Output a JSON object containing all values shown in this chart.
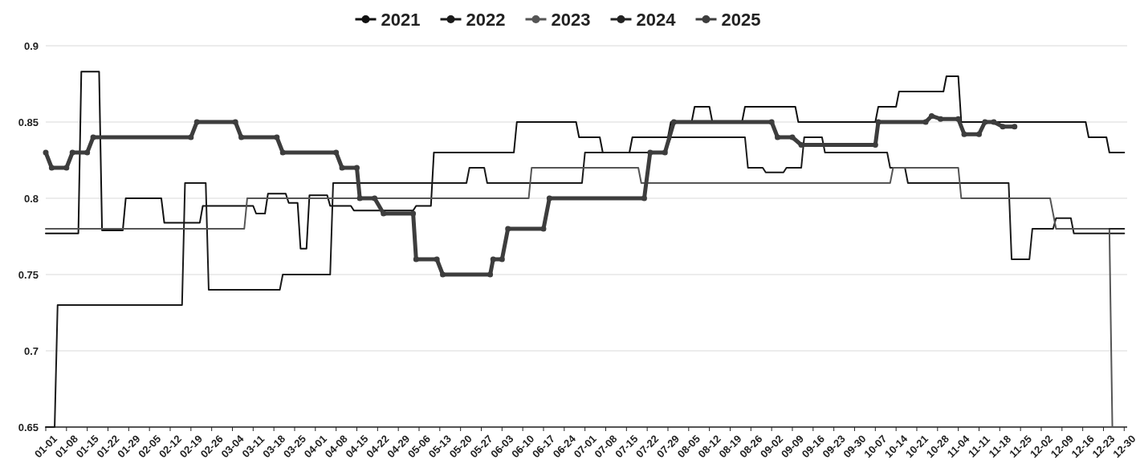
{
  "chart_data": {
    "type": "line",
    "legend": "top",
    "grid": "y",
    "ylim": [
      0.65,
      0.9
    ],
    "yticks": [
      0.65,
      0.7,
      0.75,
      0.8,
      0.85,
      0.9
    ],
    "xlim": [
      "--01-01",
      "--12-31"
    ],
    "xticks": [
      {
        "value": "--01-01",
        "label": "01-01"
      },
      {
        "value": "--01-08",
        "label": "01-08"
      },
      {
        "value": "--01-15",
        "label": "01-15"
      },
      {
        "value": "--01-22",
        "label": "01-22"
      },
      {
        "value": "--01-29",
        "label": "01-29"
      },
      {
        "value": "--02-05",
        "label": "02-05"
      },
      {
        "value": "--02-12",
        "label": "02-12"
      },
      {
        "value": "--02-19",
        "label": "02-19"
      },
      {
        "value": "--02-26",
        "label": "02-26"
      },
      {
        "value": "--03-04",
        "label": "03-04"
      },
      {
        "value": "--03-11",
        "label": "03-11"
      },
      {
        "value": "--03-18",
        "label": "03-18"
      },
      {
        "value": "--03-25",
        "label": "03-25"
      },
      {
        "value": "--04-01",
        "label": "04-01"
      },
      {
        "value": "--04-08",
        "label": "04-08"
      },
      {
        "value": "--04-15",
        "label": "04-15"
      },
      {
        "value": "--04-22",
        "label": "04-22"
      },
      {
        "value": "--04-29",
        "label": "04-29"
      },
      {
        "value": "--05-06",
        "label": "05-06"
      },
      {
        "value": "--05-13",
        "label": "05-13"
      },
      {
        "value": "--05-20",
        "label": "05-20"
      },
      {
        "value": "--05-27",
        "label": "05-27"
      },
      {
        "value": "--06-03",
        "label": "06-03"
      },
      {
        "value": "--06-10",
        "label": "06-10"
      },
      {
        "value": "--06-17",
        "label": "06-17"
      },
      {
        "value": "--06-24",
        "label": "06-24"
      },
      {
        "value": "--07-01",
        "label": "07-01"
      },
      {
        "value": "--07-08",
        "label": "07-08"
      },
      {
        "value": "--07-15",
        "label": "07-15"
      },
      {
        "value": "--07-22",
        "label": "07-22"
      },
      {
        "value": "--07-29",
        "label": "07-29"
      },
      {
        "value": "--08-05",
        "label": "08-05"
      },
      {
        "value": "--08-12",
        "label": "08-12"
      },
      {
        "value": "--08-19",
        "label": "08-19"
      },
      {
        "value": "--08-26",
        "label": "08-26"
      },
      {
        "value": "--09-02",
        "label": "09-02"
      },
      {
        "value": "--09-09",
        "label": "09-09"
      },
      {
        "value": "--09-16",
        "label": "09-16"
      },
      {
        "value": "--09-23",
        "label": "09-23"
      },
      {
        "value": "--09-30",
        "label": "09-30"
      },
      {
        "value": "--10-07",
        "label": "10-07"
      },
      {
        "value": "--10-14",
        "label": "10-14"
      },
      {
        "value": "--10-21",
        "label": "10-21"
      },
      {
        "value": "--10-28",
        "label": "10-28"
      },
      {
        "value": "--11-04",
        "label": "11-04"
      },
      {
        "value": "--11-11",
        "label": "11-11"
      },
      {
        "value": "--11-18",
        "label": "11-18"
      },
      {
        "value": "--11-25",
        "label": "11-25"
      },
      {
        "value": "--12-02",
        "label": "12-02"
      },
      {
        "value": "--12-09",
        "label": "12-09"
      },
      {
        "value": "--12-16",
        "label": "12-16"
      },
      {
        "value": "--12-23",
        "label": "12-23"
      },
      {
        "value": "--12-30",
        "label": "12-30"
      }
    ],
    "series": [
      {
        "name": "2021",
        "color": "#111111",
        "marker": "none",
        "x": [
          "--01-01",
          "--01-12",
          "--01-13",
          "--01-19",
          "--01-20",
          "--01-27",
          "--01-28",
          "--02-09",
          "--02-10",
          "--02-22",
          "--02-23",
          "--03-11",
          "--03-12",
          "--03-15",
          "--03-16",
          "--03-22",
          "--03-23",
          "--03-26",
          "--03-27",
          "--03-29",
          "--03-30",
          "--04-05",
          "--04-06",
          "--04-13",
          "--04-14",
          "--05-04",
          "--05-05",
          "--05-10",
          "--05-11",
          "--06-07",
          "--06-08",
          "--06-28",
          "--06-29",
          "--07-06",
          "--07-07",
          "--07-16",
          "--07-17",
          "--07-29",
          "--07-30",
          "--08-06",
          "--08-07",
          "--08-12",
          "--08-13",
          "--08-23",
          "--08-24",
          "--09-10",
          "--09-11",
          "--10-07",
          "--10-08",
          "--10-14",
          "--10-15",
          "--10-30",
          "--10-31",
          "--11-04",
          "--11-05",
          "--12-17",
          "--12-18",
          "--12-24",
          "--12-25",
          "--12-30"
        ],
        "values": [
          0.777,
          0.777,
          0.883,
          0.883,
          0.779,
          0.779,
          0.8,
          0.8,
          0.784,
          0.784,
          0.795,
          0.795,
          0.79,
          0.79,
          0.803,
          0.803,
          0.797,
          0.797,
          0.767,
          0.767,
          0.802,
          0.802,
          0.795,
          0.795,
          0.792,
          0.792,
          0.795,
          0.795,
          0.83,
          0.83,
          0.85,
          0.85,
          0.84,
          0.84,
          0.83,
          0.83,
          0.84,
          0.84,
          0.85,
          0.85,
          0.86,
          0.86,
          0.85,
          0.85,
          0.86,
          0.86,
          0.85,
          0.85,
          0.86,
          0.86,
          0.87,
          0.87,
          0.88,
          0.88,
          0.85,
          0.85,
          0.84,
          0.84,
          0.83,
          0.83
        ]
      },
      {
        "name": "2022",
        "color": "#1a1a1a",
        "marker": "none",
        "x": [
          "--01-01",
          "--01-04",
          "--01-05",
          "--02-16",
          "--02-17",
          "--02-24",
          "--02-25",
          "--03-20",
          "--03-21",
          "--04-06",
          "--04-07",
          "--05-22",
          "--05-23",
          "--05-28",
          "--05-29",
          "--06-30",
          "--07-01",
          "--07-28",
          "--07-30",
          "--08-24",
          "--08-25",
          "--08-30",
          "--08-31",
          "--09-06",
          "--09-07",
          "--09-12",
          "--09-13",
          "--09-19",
          "--09-20",
          "--10-11",
          "--10-12",
          "--10-17",
          "--10-18",
          "--11-21",
          "--11-22",
          "--11-28",
          "--11-29",
          "--12-06",
          "--12-07",
          "--12-12",
          "--12-13",
          "--12-30"
        ],
        "values": [
          0.65,
          0.65,
          0.73,
          0.73,
          0.81,
          0.81,
          0.74,
          0.74,
          0.75,
          0.75,
          0.81,
          0.81,
          0.82,
          0.82,
          0.81,
          0.81,
          0.83,
          0.83,
          0.84,
          0.84,
          0.82,
          0.82,
          0.817,
          0.817,
          0.82,
          0.82,
          0.84,
          0.84,
          0.83,
          0.83,
          0.82,
          0.82,
          0.81,
          0.81,
          0.76,
          0.76,
          0.78,
          0.78,
          0.787,
          0.787,
          0.777,
          0.777
        ]
      },
      {
        "name": "2023",
        "color": "#555555",
        "marker": "none",
        "x": [
          "--01-01",
          "--03-08",
          "--03-09",
          "--06-12",
          "--06-13",
          "--07-19",
          "--07-20",
          "--10-12",
          "--10-13",
          "--11-04",
          "--11-05",
          "--12-05",
          "--12-07",
          "--12-25",
          "--12-26"
        ],
        "values": [
          0.78,
          0.78,
          0.8,
          0.8,
          0.82,
          0.82,
          0.81,
          0.81,
          0.82,
          0.82,
          0.8,
          0.8,
          0.78,
          0.78,
          0.65
        ]
      },
      {
        "name": "2024",
        "color": "#222222",
        "marker": "none",
        "x": [
          "--12-25",
          "--12-30"
        ],
        "values": [
          0.78,
          0.78
        ]
      },
      {
        "name": "2025",
        "color": "#3d3d3d",
        "marker": "circle",
        "x": [
          "--01-01",
          "--01-03",
          "--01-08",
          "--01-10",
          "--01-15",
          "--01-17",
          "--02-19",
          "--02-21",
          "--03-05",
          "--03-07",
          "--03-19",
          "--03-21",
          "--04-08",
          "--04-10",
          "--04-15",
          "--04-16",
          "--04-21",
          "--04-24",
          "--05-04",
          "--05-05",
          "--05-12",
          "--05-14",
          "--05-30",
          "--05-31",
          "--06-03",
          "--06-05",
          "--06-17",
          "--06-19",
          "--07-21",
          "--07-23",
          "--07-28",
          "--07-31",
          "--09-02",
          "--09-04",
          "--09-09",
          "--09-12",
          "--10-07",
          "--10-08",
          "--10-24",
          "--10-26",
          "--10-29",
          "--11-04",
          "--11-06",
          "--11-11",
          "--11-13",
          "--11-16",
          "--11-19",
          "--11-23"
        ],
        "values": [
          0.83,
          0.82,
          0.82,
          0.83,
          0.83,
          0.84,
          0.84,
          0.85,
          0.85,
          0.84,
          0.84,
          0.83,
          0.83,
          0.82,
          0.82,
          0.8,
          0.8,
          0.79,
          0.79,
          0.76,
          0.76,
          0.75,
          0.75,
          0.76,
          0.76,
          0.78,
          0.78,
          0.8,
          0.8,
          0.83,
          0.83,
          0.85,
          0.85,
          0.84,
          0.84,
          0.835,
          0.835,
          0.85,
          0.85,
          0.854,
          0.852,
          0.852,
          0.842,
          0.842,
          0.85,
          0.85,
          0.847,
          0.847
        ]
      }
    ]
  }
}
